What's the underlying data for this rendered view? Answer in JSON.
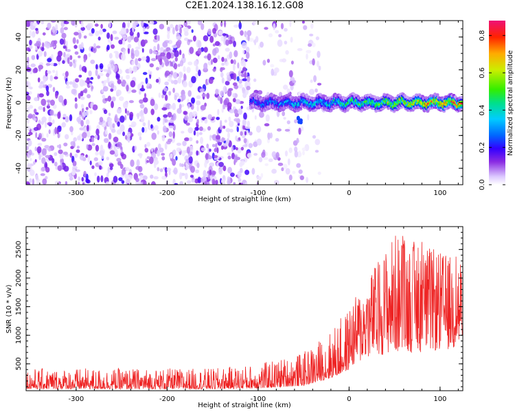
{
  "title": "C2E1.2024.138.16.12.G08",
  "chart_data": [
    {
      "type": "heatmap",
      "xlabel": "Height of straight line (km)",
      "ylabel": "Frequency (Hz)",
      "xlim": [
        -355,
        125
      ],
      "ylim": [
        -50,
        50
      ],
      "xticks": [
        -300,
        -200,
        -100,
        0,
        100
      ],
      "yticks": [
        -40,
        -20,
        0,
        20,
        40
      ],
      "description_points": {
        "ridge_start_km": -108,
        "ridge_center_hz": 0,
        "ridge_width_hz": 7,
        "noise_region_km": [
          -355,
          -30
        ]
      },
      "ridge_profile": {
        "x": [
          -108,
          -90,
          -70,
          -50,
          -30,
          0,
          30,
          60,
          90,
          120
        ],
        "peak_amplitude": [
          0.25,
          0.3,
          0.35,
          0.38,
          0.4,
          0.45,
          0.55,
          0.65,
          0.75,
          0.8
        ]
      },
      "colorbar": {
        "label": "Normalized spectral amplitude",
        "ticks": [
          0.0,
          0.2,
          0.4,
          0.6,
          0.8
        ],
        "range": [
          0,
          0.88
        ]
      }
    },
    {
      "type": "line",
      "xlabel": "Height of straight line (km)",
      "ylabel": "SNR (10 * v/v)",
      "xlim": [
        -355,
        125
      ],
      "ylim": [
        30,
        2900
      ],
      "xticks": [
        -300,
        -200,
        -100,
        0,
        100
      ],
      "yticks": [
        500,
        1000,
        1500,
        2000,
        2500
      ],
      "color": "#ee2222",
      "envelope": {
        "x": [
          -355,
          -150,
          -100,
          -50,
          -20,
          0,
          20,
          50,
          80,
          110,
          125
        ],
        "low": [
          60,
          60,
          70,
          120,
          250,
          400,
          600,
          700,
          700,
          750,
          700
        ],
        "high": [
          420,
          420,
          500,
          700,
          1100,
          1500,
          2000,
          2800,
          2600,
          2400,
          2500
        ]
      }
    }
  ]
}
